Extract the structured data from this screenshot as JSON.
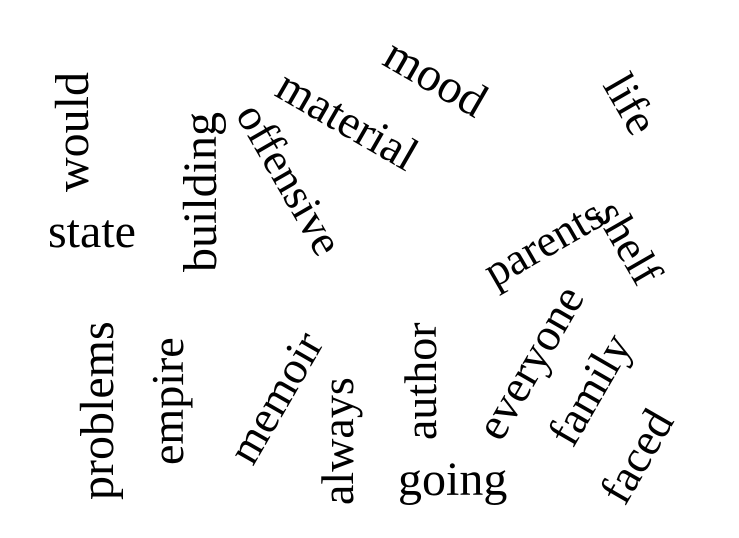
{
  "words": [
    {
      "id": "would",
      "text": "would"
    },
    {
      "id": "state",
      "text": "state"
    },
    {
      "id": "building",
      "text": "building"
    },
    {
      "id": "offensive",
      "text": "offensive"
    },
    {
      "id": "material",
      "text": "material"
    },
    {
      "id": "mood",
      "text": "mood"
    },
    {
      "id": "life",
      "text": "life"
    },
    {
      "id": "parents",
      "text": "parents"
    },
    {
      "id": "shelf",
      "text": "shelf"
    },
    {
      "id": "everyone",
      "text": "everyone"
    },
    {
      "id": "family",
      "text": "family"
    },
    {
      "id": "faced",
      "text": "faced"
    },
    {
      "id": "problems",
      "text": "problems"
    },
    {
      "id": "empire",
      "text": "empire"
    },
    {
      "id": "memoir",
      "text": "memoir"
    },
    {
      "id": "always",
      "text": "always"
    },
    {
      "id": "author",
      "text": "author"
    },
    {
      "id": "going",
      "text": "going"
    }
  ],
  "colors": {
    "text": "#000000",
    "background": "#ffffff"
  }
}
